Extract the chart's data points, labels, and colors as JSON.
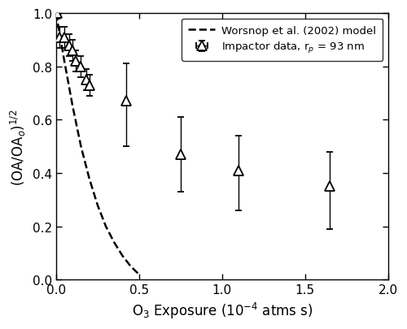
{
  "exp_x": [
    0.005,
    0.02,
    0.05,
    0.08,
    0.1,
    0.12,
    0.15,
    0.18,
    0.2,
    0.42,
    0.75,
    1.1,
    1.65
  ],
  "exp_y": [
    1.0,
    0.91,
    0.91,
    0.88,
    0.86,
    0.82,
    0.8,
    0.75,
    0.73,
    0.67,
    0.47,
    0.41,
    0.35
  ],
  "exp_yerr_low": [
    0.02,
    0.04,
    0.04,
    0.04,
    0.04,
    0.04,
    0.04,
    0.04,
    0.04,
    0.17,
    0.14,
    0.15,
    0.16
  ],
  "exp_yerr_high": [
    0.02,
    0.04,
    0.04,
    0.04,
    0.04,
    0.04,
    0.04,
    0.04,
    0.04,
    0.14,
    0.14,
    0.13,
    0.13
  ],
  "exp_xerr_low": [
    0.003,
    0.005,
    0.005,
    0.005,
    0.005,
    0.005,
    0.005,
    0.005,
    0.005,
    0.0,
    0.0,
    0.0,
    0.0
  ],
  "exp_xerr_high": [
    0.003,
    0.005,
    0.005,
    0.005,
    0.005,
    0.005,
    0.005,
    0.005,
    0.005,
    0.0,
    0.0,
    0.0,
    0.0
  ],
  "model_x": [
    0.0,
    0.05,
    0.1,
    0.15,
    0.2,
    0.25,
    0.3,
    0.35,
    0.4,
    0.45,
    0.5
  ],
  "model_y": [
    1.0,
    0.82,
    0.65,
    0.5,
    0.38,
    0.28,
    0.2,
    0.14,
    0.09,
    0.05,
    0.02
  ],
  "xlabel": "O$_3$ Exposure (10$^{-4}$ atms s)",
  "ylabel": "(OA/OA$_o$)$^{1/2}$",
  "xlim": [
    0.0,
    2.0
  ],
  "ylim": [
    0.0,
    1.0
  ],
  "xticks": [
    0.0,
    0.5,
    1.0,
    1.5,
    2.0
  ],
  "yticks": [
    0.0,
    0.2,
    0.4,
    0.6,
    0.8,
    1.0
  ],
  "legend_label_model": "Worsnop et al. (2002) model",
  "legend_label_data": "Impactor data, r$_p$ = 93 nm",
  "marker_color": "black",
  "model_color": "black",
  "bg_color": "white",
  "figsize": [
    5.0,
    4.06
  ],
  "dpi": 100
}
